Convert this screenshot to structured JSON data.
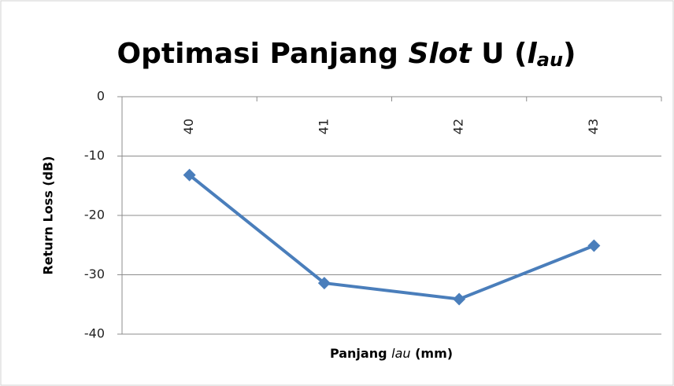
{
  "chart_data": {
    "type": "line",
    "title": [
      "Optimasi Panjang ",
      "Slot",
      " U (",
      "l",
      "au",
      ")"
    ],
    "x_label": [
      "Panjang ",
      "lau",
      " (mm)"
    ],
    "y_label": "Return Loss (dB)",
    "categories": [
      "40",
      "41",
      "42",
      "43"
    ],
    "series": [
      {
        "name": "Return Loss",
        "color": "#4a7ebb",
        "values": [
          -13.2,
          -31.4,
          -34.1,
          -25.1
        ]
      }
    ],
    "ylim": [
      -40,
      0
    ],
    "yticks": [
      0,
      -10,
      -20,
      -30,
      -40
    ],
    "grid": true
  }
}
